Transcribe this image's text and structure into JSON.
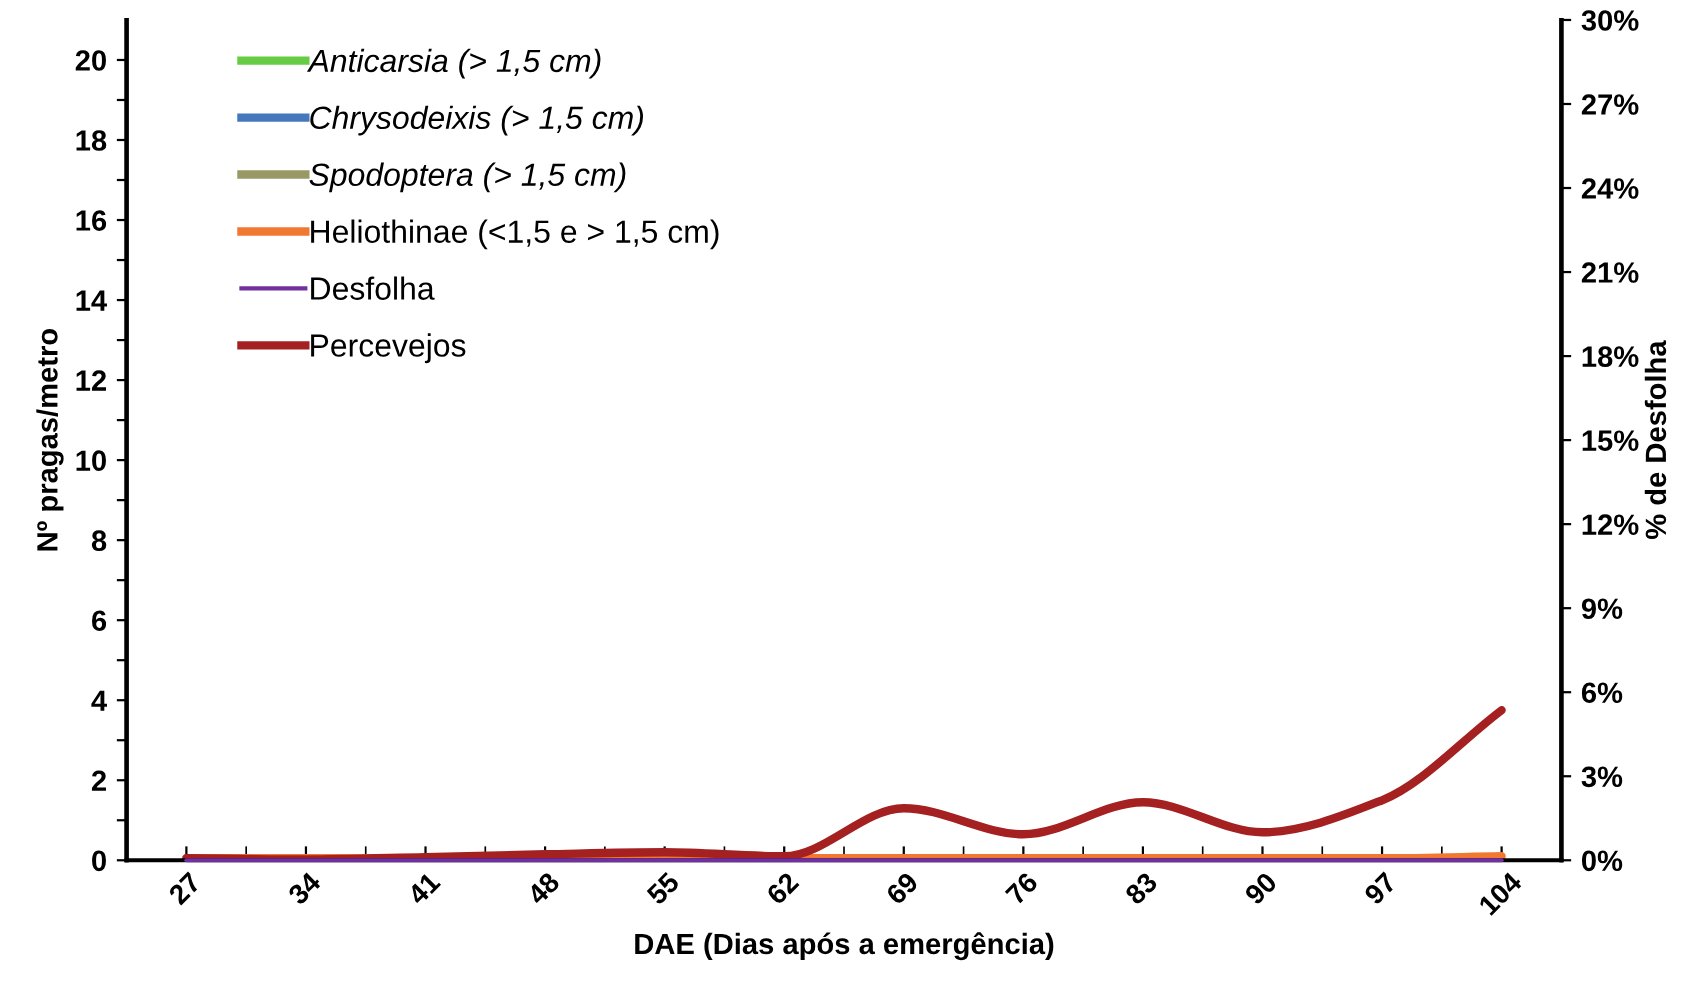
{
  "chart_data": {
    "type": "line",
    "xlabel": "DAE (Dias após a emergência)",
    "ylabel": "Nº pragas/metro",
    "y2label": "% de Desfolha",
    "categories": [
      "27",
      "34",
      "41",
      "48",
      "55",
      "62",
      "69",
      "76",
      "83",
      "90",
      "97",
      "104"
    ],
    "series": [
      {
        "name": "Anticarsia (> 1,5 cm)",
        "color": "#66cc44",
        "values": [
          null,
          null,
          null,
          null,
          null,
          null,
          null,
          null,
          null,
          null,
          null,
          null
        ]
      },
      {
        "name": "Chrysodeixis (> 1,5 cm)",
        "color": "#4477bb",
        "values": [
          null,
          null,
          null,
          null,
          null,
          null,
          null,
          null,
          null,
          null,
          null,
          null
        ]
      },
      {
        "name": "Spodoptera (> 1,5 cm)",
        "color": "#999966",
        "values": [
          null,
          null,
          null,
          null,
          null,
          null,
          null,
          null,
          null,
          null,
          null,
          null
        ]
      },
      {
        "name": "Heliothinae (<1,5 e > 1,5 cm)",
        "color": "#f07830",
        "values": [
          0.05,
          0.05,
          0.05,
          0.05,
          0.05,
          0.05,
          0.05,
          0.05,
          0.05,
          0.05,
          0.05,
          0.1
        ]
      },
      {
        "name": "Desfolha",
        "color": "#7030a0",
        "axis": "y2",
        "values": [
          0,
          0,
          0,
          0,
          0,
          0,
          0,
          0,
          0,
          0,
          0,
          0
        ]
      },
      {
        "name": "Percevejos",
        "color": "#a52020",
        "values": [
          0.05,
          0.02,
          0.08,
          0.15,
          0.2,
          0.1,
          1.3,
          0.65,
          1.45,
          0.7,
          1.5,
          3.75
        ]
      }
    ],
    "ylim": [
      0,
      21
    ],
    "yticks": [
      0,
      {
        "value": 1,
        "label": null
      },
      2,
      {
        "value": 3,
        "label": null
      },
      4,
      {
        "value": 5,
        "label": null
      },
      6,
      {
        "value": 7,
        "label": null
      },
      8,
      {
        "value": 9,
        "label": null
      },
      10,
      {
        "value": 11,
        "label": null
      },
      12,
      {
        "value": 13,
        "label": null
      },
      14,
      {
        "value": 15,
        "label": null
      },
      16,
      {
        "value": 17,
        "label": null
      },
      18,
      {
        "value": 19,
        "label": null
      },
      20
    ],
    "y2lim": [
      0,
      30
    ],
    "y2ticks": [
      {
        "value": 0,
        "label": "0%"
      },
      {
        "value": 3,
        "label": "3%"
      },
      {
        "value": 6,
        "label": "6%"
      },
      {
        "value": 9,
        "label": "9%"
      },
      {
        "value": 12,
        "label": "12%"
      },
      {
        "value": 15,
        "label": "15%"
      },
      {
        "value": 18,
        "label": "18%"
      },
      {
        "value": 21,
        "label": "21%"
      },
      {
        "value": 24,
        "label": "24%"
      },
      {
        "value": 27,
        "label": "27%"
      },
      {
        "value": 30,
        "label": "30%"
      }
    ],
    "legend": "top left",
    "grid": false,
    "marker": "none",
    "line_style": "solid"
  }
}
